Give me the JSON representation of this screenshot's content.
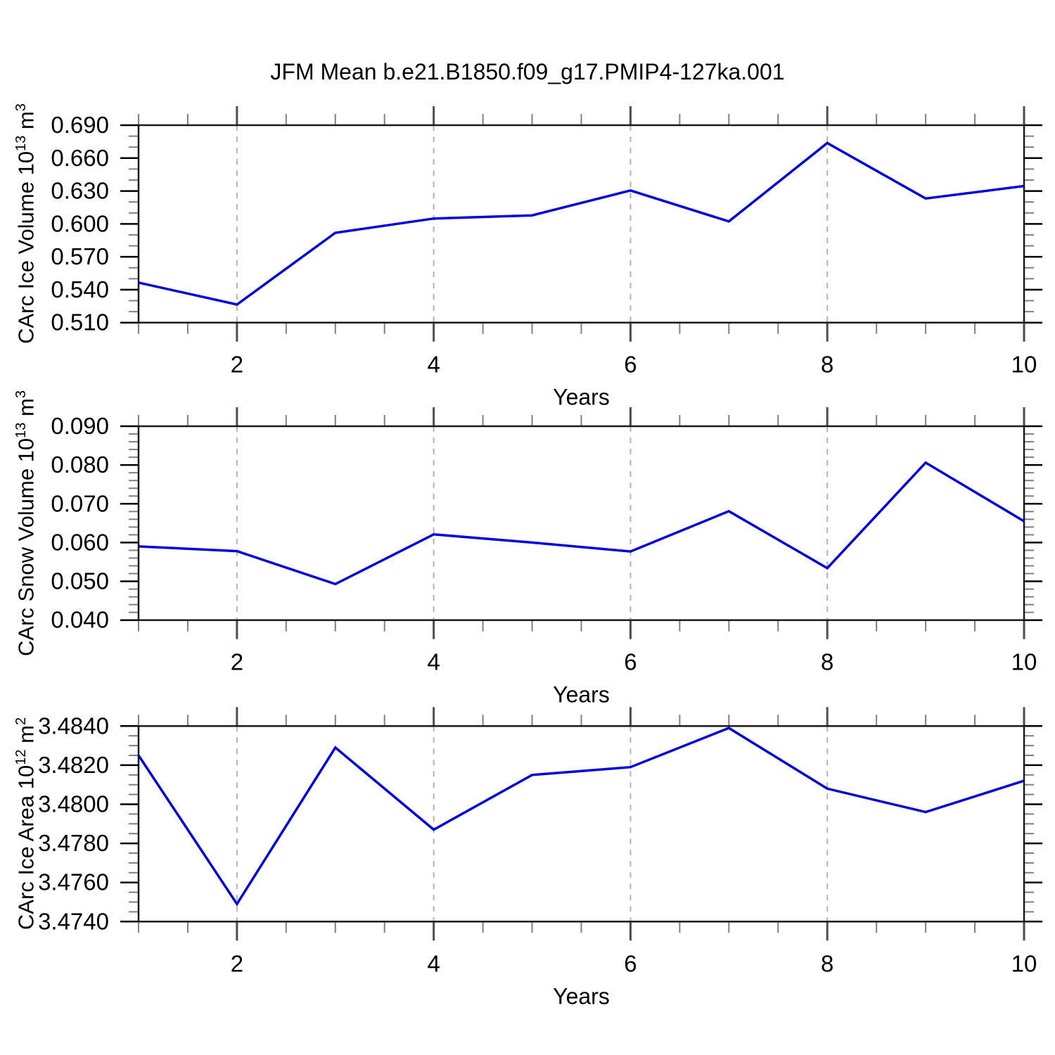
{
  "title": "JFM Mean b.e21.B1850.f09_g17.PMIP4-127ka.001",
  "colors": {
    "line": "#0000dd",
    "frame": "#1a1a1a",
    "y_major_tick": "#000000",
    "x_major_tick": "#4d4d4d",
    "minor_tick": "#808080",
    "grid": "#b3b3b3"
  },
  "chart_data": [
    {
      "type": "line",
      "name": "carc-ice-volume",
      "ylabel": {
        "prefix": "CArc Ice Volume 10",
        "exp": "13",
        "unit": " m",
        "unit_exp": "3"
      },
      "xlabel": "Years",
      "x": [
        1,
        2,
        3,
        4,
        5,
        6,
        7,
        8,
        9,
        10
      ],
      "values": [
        0.5465,
        0.5265,
        0.5919,
        0.6049,
        0.6078,
        0.6305,
        0.6023,
        0.6737,
        0.6232,
        0.6345
      ],
      "xlim": [
        1,
        10
      ],
      "ylim": [
        0.51,
        0.69
      ],
      "xticks": [
        {
          "v": 2,
          "label": "2"
        },
        {
          "v": 4,
          "label": "4"
        },
        {
          "v": 6,
          "label": "6"
        },
        {
          "v": 8,
          "label": "8"
        },
        {
          "v": 10,
          "label": "10"
        }
      ],
      "x_minor_step": 0.5,
      "yticks": [
        {
          "v": 0.51,
          "label": "0.510"
        },
        {
          "v": 0.54,
          "label": "0.540"
        },
        {
          "v": 0.57,
          "label": "0.570"
        },
        {
          "v": 0.6,
          "label": "0.600"
        },
        {
          "v": 0.63,
          "label": "0.630"
        },
        {
          "v": 0.66,
          "label": "0.660"
        },
        {
          "v": 0.69,
          "label": "0.690"
        }
      ],
      "y_minor_step": 0.01,
      "grid_x": [
        2,
        4,
        6,
        8
      ],
      "grid_on": true,
      "legend": "none"
    },
    {
      "type": "line",
      "name": "carc-snow-volume",
      "ylabel": {
        "prefix": "CArc Snow Volume 10",
        "exp": "13",
        "unit": " m",
        "unit_exp": "3"
      },
      "xlabel": "Years",
      "x": [
        1,
        2,
        3,
        4,
        5,
        6,
        7,
        8,
        9,
        10
      ],
      "values": [
        0.059,
        0.0578,
        0.0493,
        0.0621,
        0.06,
        0.0577,
        0.0681,
        0.0534,
        0.0806,
        0.0655
      ],
      "xlim": [
        1,
        10
      ],
      "ylim": [
        0.04,
        0.09
      ],
      "xticks": [
        {
          "v": 2,
          "label": "2"
        },
        {
          "v": 4,
          "label": "4"
        },
        {
          "v": 6,
          "label": "6"
        },
        {
          "v": 8,
          "label": "8"
        },
        {
          "v": 10,
          "label": "10"
        }
      ],
      "x_minor_step": 0.5,
      "yticks": [
        {
          "v": 0.04,
          "label": "0.040"
        },
        {
          "v": 0.05,
          "label": "0.050"
        },
        {
          "v": 0.06,
          "label": "0.060"
        },
        {
          "v": 0.07,
          "label": "0.070"
        },
        {
          "v": 0.08,
          "label": "0.080"
        },
        {
          "v": 0.09,
          "label": "0.090"
        }
      ],
      "y_minor_step": 0.002,
      "grid_x": [
        2,
        4,
        6,
        8
      ],
      "grid_on": true,
      "legend": "none"
    },
    {
      "type": "line",
      "name": "carc-ice-area",
      "ylabel": {
        "prefix": "CArc Ice Area 10",
        "exp": "12",
        "unit": " m",
        "unit_exp": "2"
      },
      "xlabel": "Years",
      "x": [
        1,
        2,
        3,
        4,
        5,
        6,
        7,
        8,
        9,
        10
      ],
      "values": [
        3.4825,
        3.4749,
        3.4829,
        3.4787,
        3.4815,
        3.4819,
        3.4839,
        3.4808,
        3.4796,
        3.4812
      ],
      "xlim": [
        1,
        10
      ],
      "ylim": [
        3.474,
        3.484
      ],
      "xticks": [
        {
          "v": 2,
          "label": "2"
        },
        {
          "v": 4,
          "label": "4"
        },
        {
          "v": 6,
          "label": "6"
        },
        {
          "v": 8,
          "label": "8"
        },
        {
          "v": 10,
          "label": "10"
        }
      ],
      "x_minor_step": 0.5,
      "yticks": [
        {
          "v": 3.474,
          "label": "3.4740"
        },
        {
          "v": 3.476,
          "label": "3.4760"
        },
        {
          "v": 3.478,
          "label": "3.4780"
        },
        {
          "v": 3.48,
          "label": "3.4800"
        },
        {
          "v": 3.482,
          "label": "3.4820"
        },
        {
          "v": 3.484,
          "label": "3.4840"
        }
      ],
      "y_minor_step": 0.0005,
      "grid_x": [
        2,
        4,
        6,
        8
      ],
      "grid_on": true,
      "legend": "none"
    }
  ]
}
